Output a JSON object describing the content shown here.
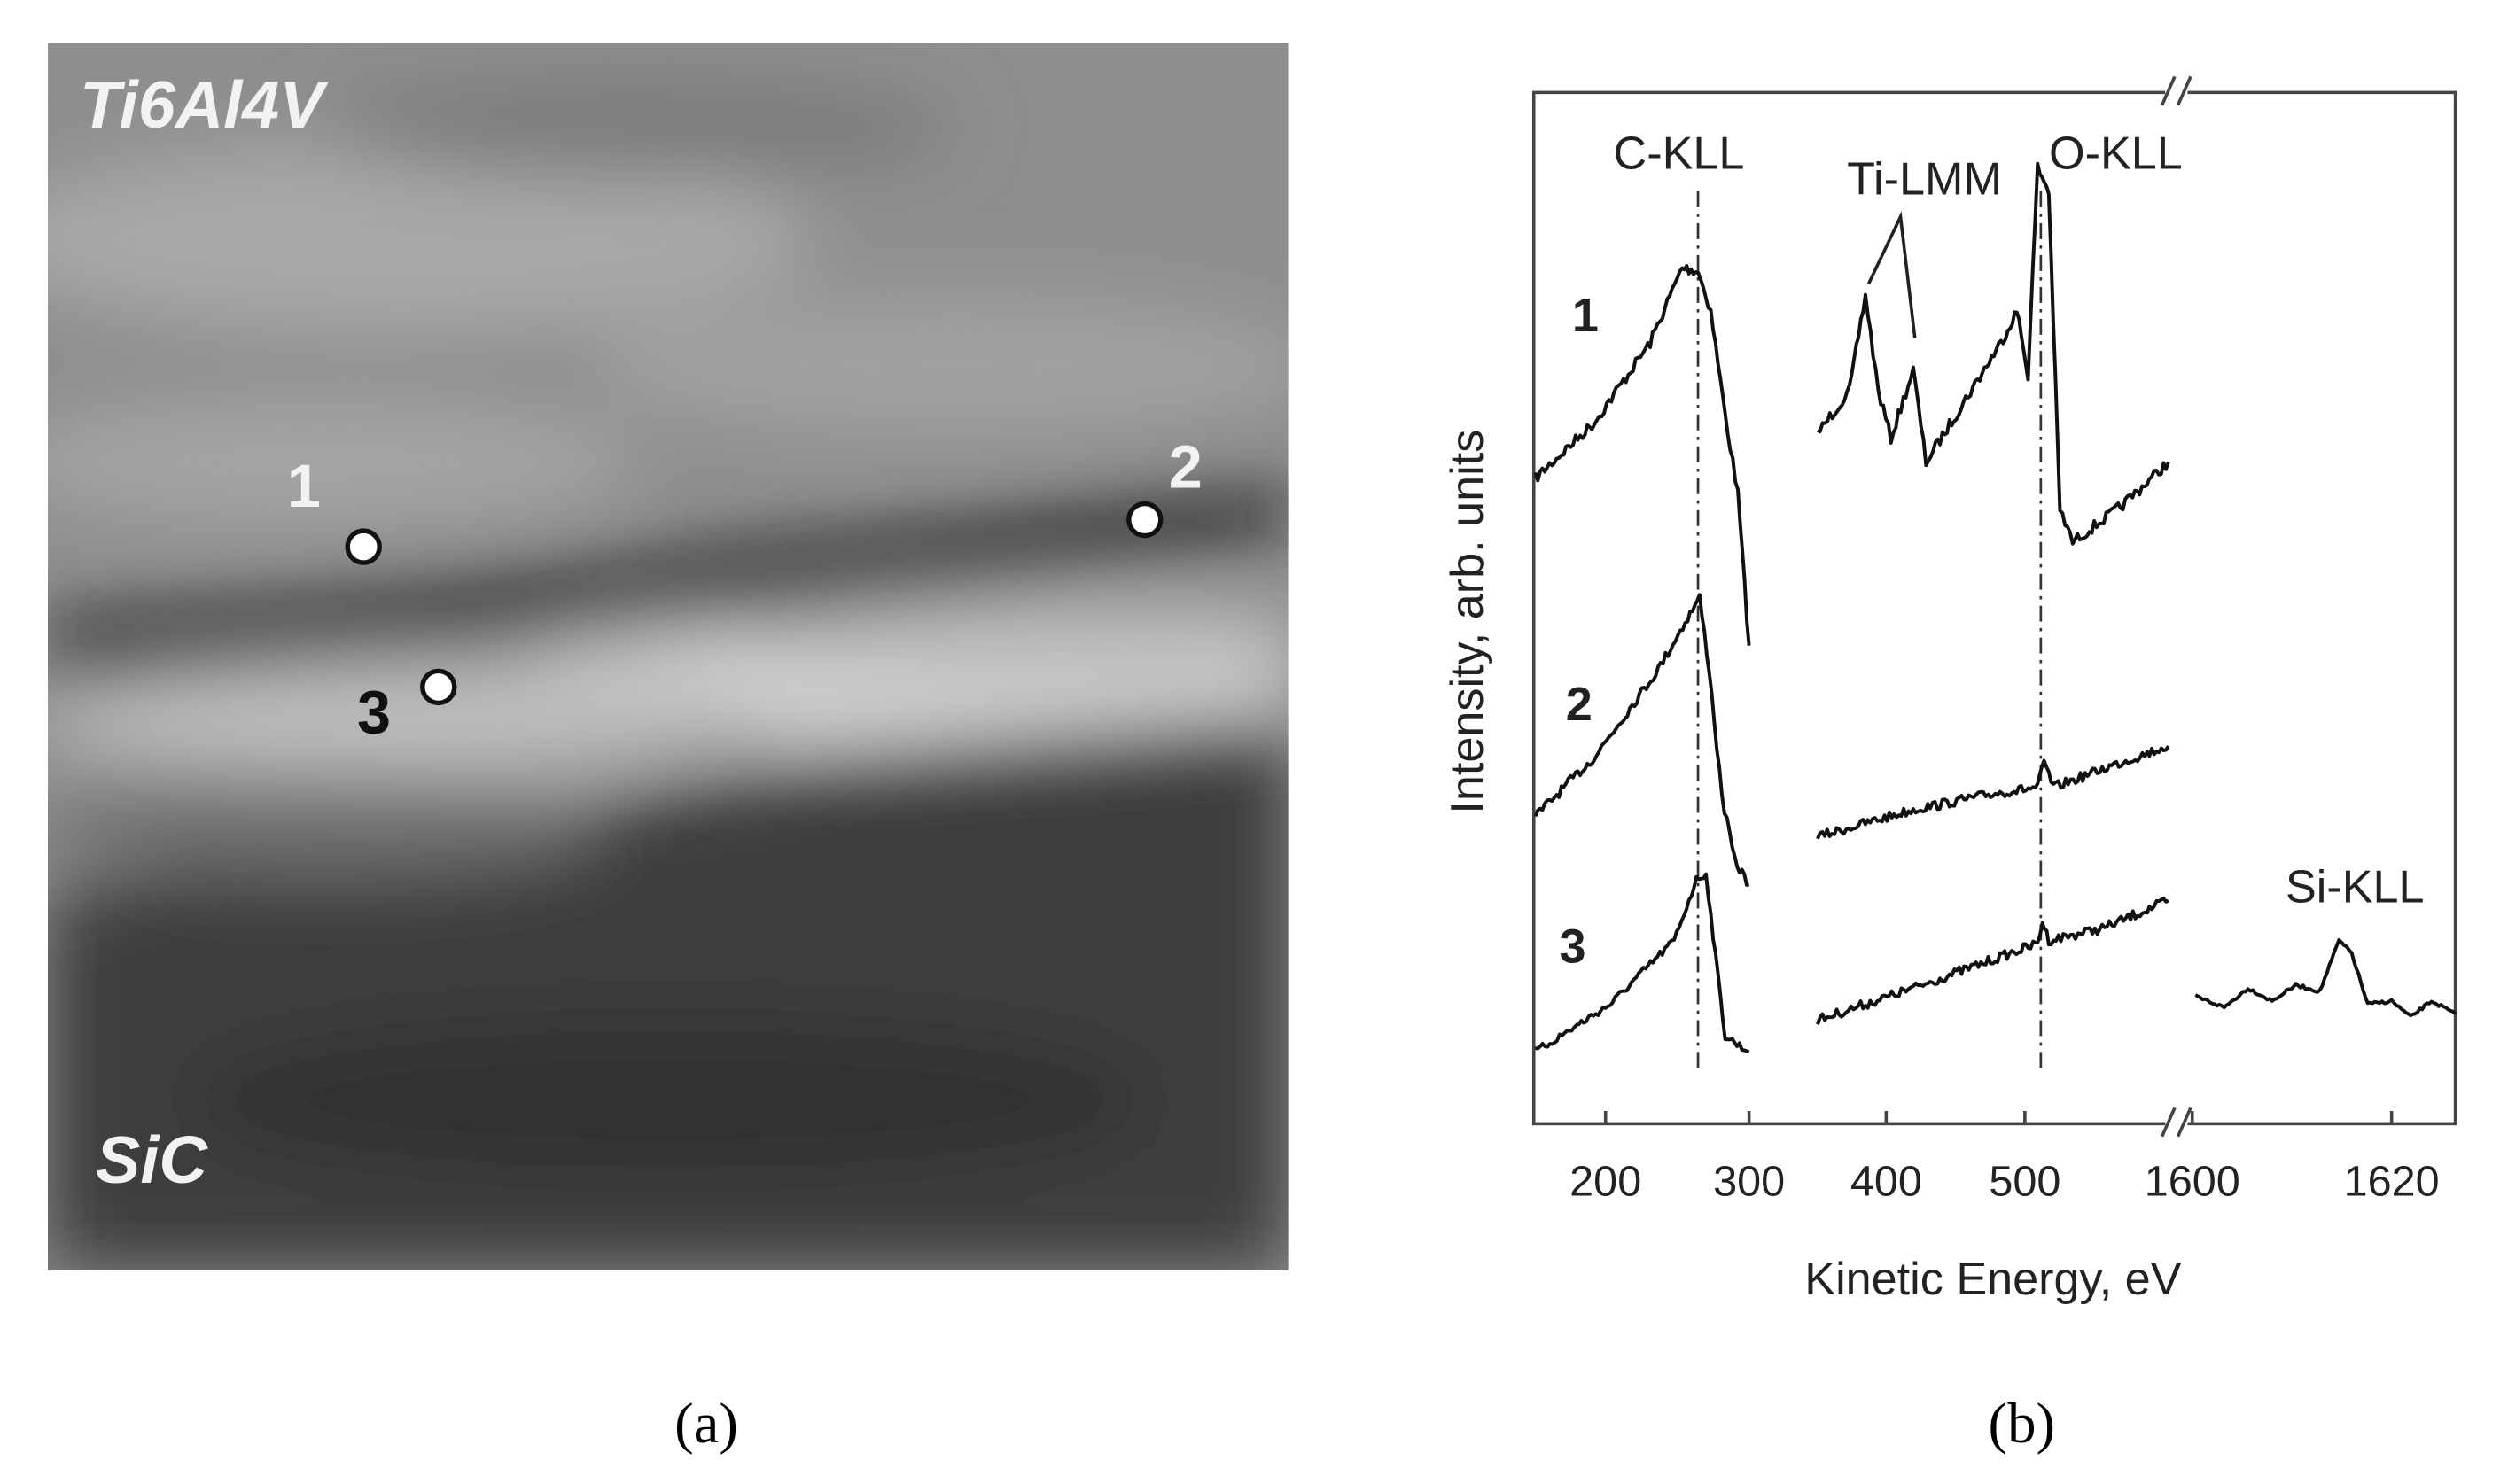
{
  "panel_a": {
    "sample_top": "Ti6Al4V",
    "sample_bottom": "SiC",
    "points": [
      "1",
      "2",
      "3"
    ],
    "caption": "(a)"
  },
  "panel_b": {
    "y_label": "Intensity, arb. units",
    "x_label": "Kinetic Energy, eV",
    "peaks": [
      "C-KLL",
      "Ti-LMM",
      "O-KLL",
      "Si-KLL"
    ],
    "spectra": [
      "1",
      "2",
      "3"
    ],
    "x_ticks": [
      "200",
      "300",
      "400",
      "500",
      "1600",
      "1620"
    ],
    "caption": "(b)"
  }
}
